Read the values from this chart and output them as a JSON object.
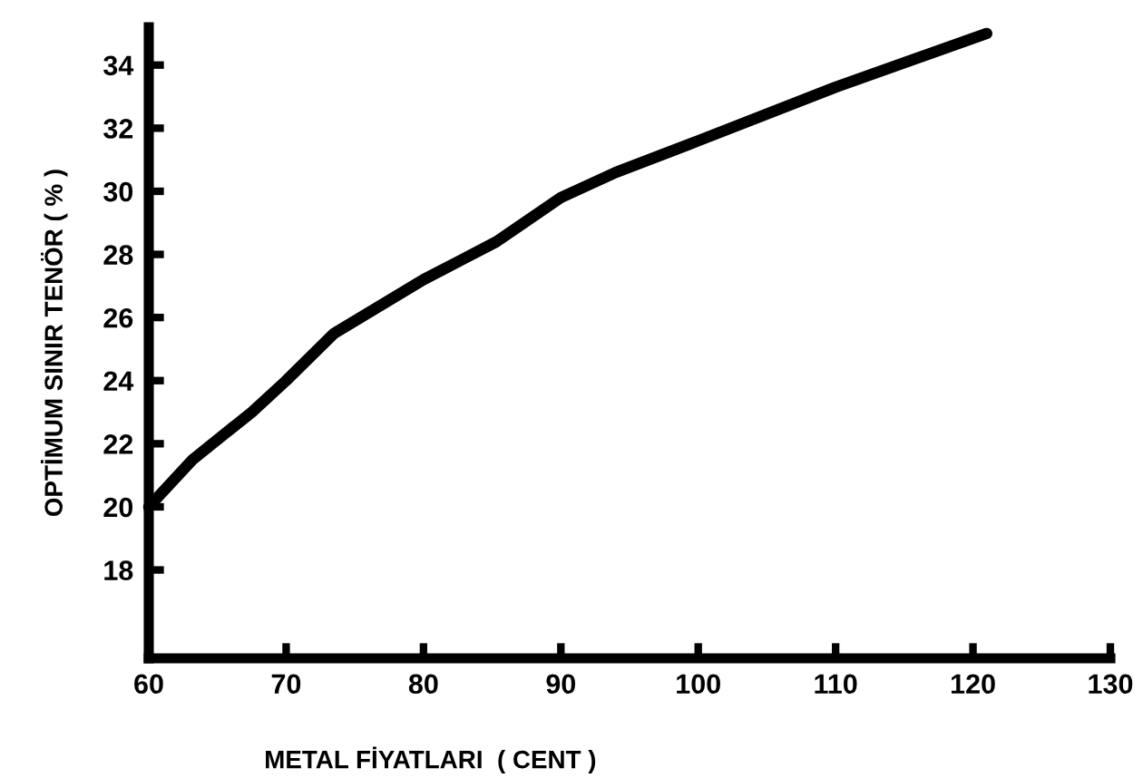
{
  "chart_data": {
    "type": "line",
    "xlabel": "METAL FİYATLARI  ( CENT )",
    "ylabel": "OPTİMUM SINIR TENÖR ( % )",
    "x": [
      60,
      63.2,
      67.5,
      70,
      73.5,
      80,
      85.3,
      90,
      94,
      100,
      110,
      121
    ],
    "series": [
      {
        "color": "#000000",
        "values": [
          20,
          21.5,
          23,
          24,
          25.5,
          27.2,
          28.4,
          29.8,
          30.6,
          31.6,
          33.3,
          35
        ]
      }
    ],
    "xlim": [
      60,
      130
    ],
    "xticks": [
      60,
      70,
      80,
      90,
      100,
      110,
      120,
      130
    ],
    "ylim": [
      15.2,
      35.2
    ],
    "yticks": [
      18,
      20,
      22,
      24,
      26,
      28,
      30,
      32,
      34
    ],
    "grid": false,
    "legend": false,
    "marker": "none",
    "line_style": "solid"
  }
}
